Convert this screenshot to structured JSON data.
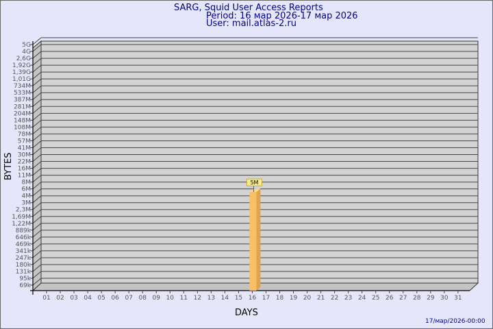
{
  "header": {
    "title": "SARG, Squid User Access Reports",
    "period": "Period: 16 мар 2026-17 мар 2026",
    "user": "User: mail.atlas-2.ru"
  },
  "footer": {
    "timestamp": "17/мар/2026-00:00"
  },
  "colors": {
    "background": "#e6e6fa",
    "plot": "#d3d3d3",
    "bar": "#fbc064",
    "bar_side": "#e0a44c",
    "label_box": "#f5eb9a",
    "text": "#00008b"
  },
  "chart_data": {
    "type": "bar",
    "xlabel": "DAYS",
    "ylabel": "BYTES",
    "y_scale": "log",
    "grid": true,
    "categories": [
      "01",
      "02",
      "03",
      "04",
      "05",
      "06",
      "07",
      "08",
      "09",
      "10",
      "11",
      "12",
      "13",
      "14",
      "15",
      "16",
      "17",
      "18",
      "19",
      "20",
      "21",
      "22",
      "23",
      "24",
      "25",
      "26",
      "27",
      "28",
      "29",
      "30",
      "31"
    ],
    "y_ticks": [
      "5G",
      "4G",
      "2,6G",
      "1,92G",
      "1,39G",
      "1,01G",
      "734M",
      "533M",
      "387M",
      "281M",
      "204M",
      "148M",
      "108M",
      "78M",
      "57M",
      "41M",
      "30M",
      "22M",
      "16M",
      "11M",
      "8M",
      "6M",
      "4M",
      "3M",
      "2,3M",
      "1,69M",
      "1,22M",
      "889k",
      "646k",
      "469k",
      "341k",
      "247k",
      "180k",
      "131k",
      "95k",
      "69k"
    ],
    "bars": [
      {
        "category": "16",
        "value": "5M",
        "label": "5M"
      }
    ]
  }
}
